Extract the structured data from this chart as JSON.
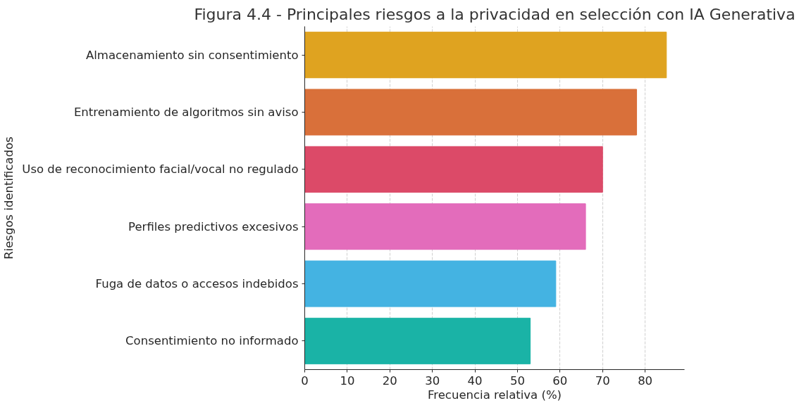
{
  "chart_data": {
    "type": "bar",
    "orientation": "horizontal",
    "title": "Figura 4.4 - Principales riesgos a la privacidad en selección con IA Generativa",
    "xlabel": "Frecuencia relativa (%)",
    "ylabel": "Riesgos identificados",
    "categories": [
      "Almacenamiento sin consentimiento",
      "Entrenamiento de algoritmos sin aviso",
      "Uso de reconocimiento facial/vocal no regulado",
      "Perfiles predictivos excesivos",
      "Fuga de datos o accesos indebidos",
      "Consentimiento no informado"
    ],
    "values": [
      85,
      78,
      70,
      66,
      59,
      53
    ],
    "colors": [
      "#dfa320",
      "#d9703a",
      "#dc4a68",
      "#e36cbb",
      "#44b3e2",
      "#1ab3a6"
    ],
    "xlim": [
      0,
      89.25
    ],
    "xticks": [
      0,
      10,
      20,
      30,
      40,
      50,
      60,
      70,
      80
    ],
    "grid": "x"
  }
}
